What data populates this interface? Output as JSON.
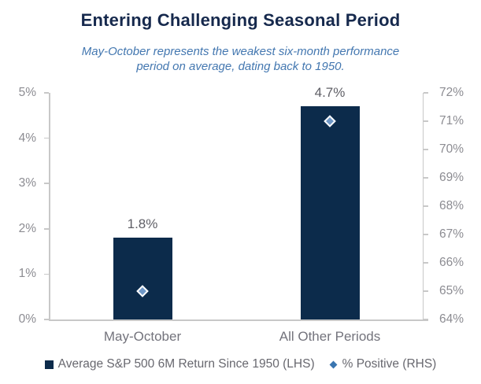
{
  "title": "Entering Challenging Seasonal Period",
  "subtitle_lines": [
    "May-October represents the weakest six-month performance",
    "period on average, dating back to 1950."
  ],
  "colors": {
    "title_navy": "#16294d",
    "subtitle_blue": "#4377b0",
    "bar_navy": "#0c2b4b",
    "diamond_fill": "#6f97c6",
    "diamond_border": "#ffffff",
    "legend_diamond_blue": "#3a75b0",
    "axis_line_gray": "#c8c8c8",
    "tick_label_gray": "#8c8c92",
    "category_label_gray": "#73737c",
    "data_label_gray": "#5f5f66",
    "legend_text_gray": "#68686f",
    "background": "#ffffff"
  },
  "chart_data": {
    "type": "bar",
    "title": "Entering Challenging Seasonal Period",
    "subtitle": "May-October represents the weakest six-month performance period on average, dating back to 1950.",
    "categories": [
      "May-October",
      "All Other Periods"
    ],
    "series": [
      {
        "name": "Average S&P 500 6M Return Since 1950 (LHS)",
        "type": "bar",
        "axis": "left",
        "values": [
          1.8,
          4.7
        ],
        "data_labels": [
          "1.8%",
          "4.7%"
        ]
      },
      {
        "name": "% Positive (RHS)",
        "type": "scatter",
        "marker": "diamond",
        "axis": "right",
        "values": [
          65,
          71
        ]
      }
    ],
    "left_axis": {
      "min": 0,
      "max": 5,
      "step": 1,
      "tick_labels": [
        "0%",
        "1%",
        "2%",
        "3%",
        "4%",
        "5%"
      ]
    },
    "right_axis": {
      "min": 64,
      "max": 72,
      "step": 1,
      "tick_labels": [
        "64%",
        "65%",
        "66%",
        "67%",
        "68%",
        "69%",
        "70%",
        "71%",
        "72%"
      ]
    },
    "grid": false,
    "legend_position": "bottom"
  }
}
